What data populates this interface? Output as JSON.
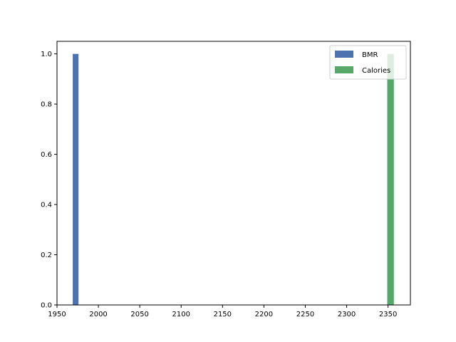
{
  "chart_data": {
    "type": "bar",
    "title": "",
    "xlabel": "",
    "ylabel": "",
    "xlim": [
      1950,
      2377
    ],
    "ylim": [
      0,
      1.05
    ],
    "x_ticks": [
      1950,
      2000,
      2050,
      2100,
      2150,
      2200,
      2250,
      2300,
      2350
    ],
    "x_tick_labels": [
      "1950",
      "2000",
      "2050",
      "2100",
      "2150",
      "2200",
      "2250",
      "2300",
      "2350"
    ],
    "y_ticks": [
      0.0,
      0.2,
      0.4,
      0.6,
      0.8,
      1.0
    ],
    "y_tick_labels": [
      "0.0",
      "0.2",
      "0.4",
      "0.6",
      "0.8",
      "1.0"
    ],
    "grid": false,
    "legend_position": "top-right",
    "series": [
      {
        "name": "BMR",
        "color": "#4c72b0",
        "bins": [
          {
            "x0": 1969,
            "x1": 1976,
            "value": 1
          }
        ]
      },
      {
        "name": "Calories",
        "color": "#55a868",
        "bins": [
          {
            "x0": 2349,
            "x1": 2357,
            "value": 1
          }
        ]
      }
    ]
  }
}
